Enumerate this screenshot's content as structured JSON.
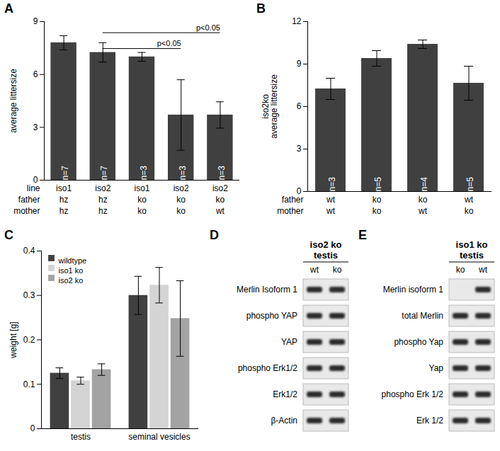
{
  "chart_data": [
    {
      "panel": "A",
      "type": "bar",
      "ylabel": "average littersize",
      "color": "#404040",
      "ylim": [
        0,
        9
      ],
      "yticks": [
        0,
        3,
        6,
        9
      ],
      "values": [
        7.8,
        7.25,
        7.0,
        3.7,
        3.7
      ],
      "errors": [
        0.4,
        0.55,
        0.25,
        2.0,
        0.75
      ],
      "n_labels": [
        "n=7",
        "n=7",
        "n=3",
        "n=3",
        "n=3"
      ],
      "label_rows": [
        {
          "name": "line",
          "labels": [
            "iso1",
            "iso2",
            "iso1",
            "iso2",
            "iso2"
          ]
        },
        {
          "name": "father",
          "labels": [
            "hz",
            "hz",
            "ko",
            "ko",
            "ko"
          ]
        },
        {
          "name": "mother",
          "labels": [
            "hz",
            "hz",
            "ko",
            "ko",
            "wt"
          ]
        }
      ],
      "annotations": [
        {
          "text": "p<0.05",
          "from": 1,
          "to": 3
        },
        {
          "text": "p<0.05",
          "from": 1,
          "to": 4
        }
      ]
    },
    {
      "panel": "B",
      "type": "bar",
      "ylabel": "iso2ko\naverage littersize",
      "color": "#404040",
      "ylim": [
        0,
        12
      ],
      "yticks": [
        0,
        3,
        6,
        9,
        12
      ],
      "values": [
        7.25,
        9.4,
        10.4,
        7.65
      ],
      "errors": [
        0.75,
        0.55,
        0.3,
        1.2
      ],
      "n_labels": [
        "n=3",
        "n=5",
        "n=4",
        "n=5"
      ],
      "label_rows": [
        {
          "name": "father",
          "labels": [
            "wt",
            "ko",
            "ko",
            "wt"
          ]
        },
        {
          "name": "mother",
          "labels": [
            "wt",
            "ko",
            "wt",
            "ko"
          ]
        }
      ]
    },
    {
      "panel": "C",
      "type": "bar",
      "ylabel": "weight [g]",
      "ylim": [
        0,
        0.4
      ],
      "yticks": [
        0,
        0.1,
        0.2,
        0.3,
        0.4
      ],
      "categories": [
        "testis",
        "seminal vesicles"
      ],
      "legend": "top-left",
      "series": [
        {
          "name": "wildtype",
          "color": "#404040",
          "values": [
            0.125,
            0.3
          ],
          "errors": [
            0.012,
            0.043
          ]
        },
        {
          "name": "iso1 ko",
          "color": "#d4d4d4",
          "values": [
            0.108,
            0.323
          ],
          "errors": [
            0.008,
            0.04
          ]
        },
        {
          "name": "iso2 ko",
          "color": "#a3a3a3",
          "values": [
            0.133,
            0.248
          ],
          "errors": [
            0.013,
            0.085
          ]
        }
      ]
    }
  ],
  "blots": [
    {
      "panel": "D",
      "title": [
        "iso2 ko",
        "testis"
      ],
      "lanes": [
        "wt",
        "ko"
      ],
      "rows": [
        {
          "label": "Merlin Isoform 1",
          "bands": [
            true,
            true
          ]
        },
        {
          "label": "phospho YAP",
          "bands": [
            true,
            true
          ]
        },
        {
          "label": "YAP",
          "bands": [
            true,
            true
          ]
        },
        {
          "label": "phospho Erk1/2",
          "bands": [
            true,
            true
          ]
        },
        {
          "label": "Erk1/2",
          "bands": [
            true,
            true
          ]
        },
        {
          "label": "β-Actin",
          "bands": [
            true,
            true
          ]
        }
      ]
    },
    {
      "panel": "E",
      "title": [
        "iso1 ko",
        "testis"
      ],
      "lanes": [
        "ko",
        "wt"
      ],
      "rows": [
        {
          "label": "Merlin isoform 1",
          "bands": [
            false,
            true
          ]
        },
        {
          "label": "total Merlin",
          "bands": [
            true,
            true
          ]
        },
        {
          "label": "phospho Yap",
          "bands": [
            true,
            true
          ]
        },
        {
          "label": "Yap",
          "bands": [
            true,
            true
          ]
        },
        {
          "label": "phospho Erk 1/2",
          "bands": [
            true,
            true
          ]
        },
        {
          "label": "Erk 1/2",
          "bands": [
            true,
            true
          ]
        }
      ]
    }
  ]
}
